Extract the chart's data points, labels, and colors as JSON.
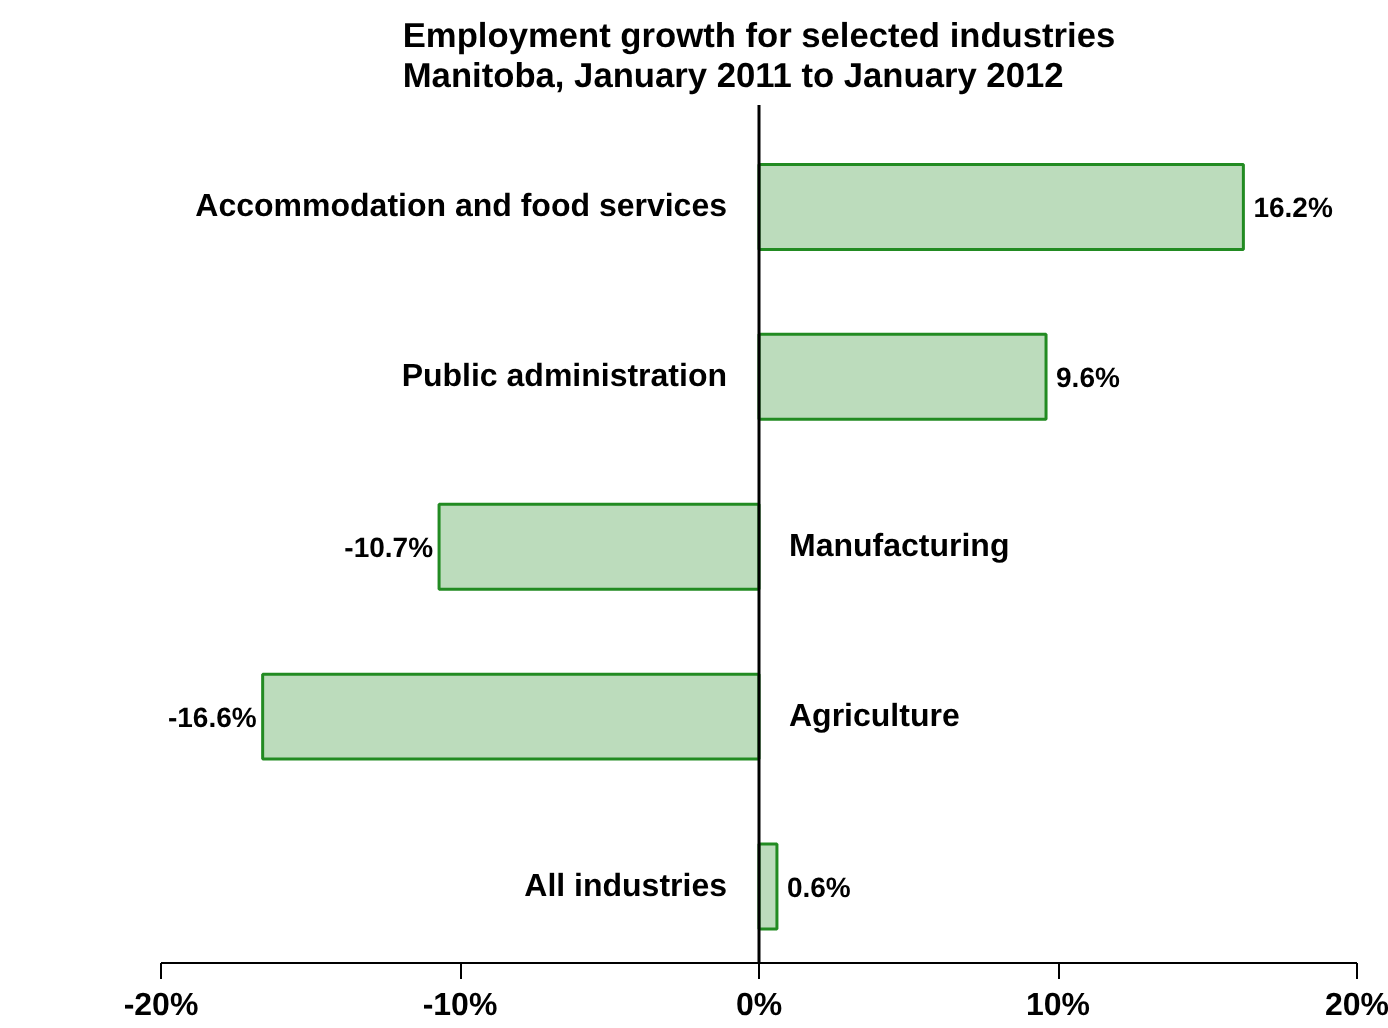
{
  "chart_data": {
    "type": "bar",
    "orientation": "horizontal",
    "title": "Employment growth for selected industries\nManitoba, January 2011 to January 2012",
    "categories": [
      "Accommodation and food services",
      "Public administration",
      "Manufacturing",
      "Agriculture",
      "All industries"
    ],
    "values": [
      16.2,
      9.6,
      -10.7,
      -16.6,
      0.6
    ],
    "value_labels": [
      "16.2%",
      "9.6%",
      "-10.7%",
      "-16.6%",
      "0.6%"
    ],
    "color": "#228b22",
    "xlim": [
      -20,
      20
    ],
    "xticks": [
      {
        "value": -20,
        "label": "-20%"
      },
      {
        "value": -10,
        "label": "-10%"
      },
      {
        "value": 0,
        "label": "0%"
      },
      {
        "value": 10,
        "label": "10%"
      },
      {
        "value": 20,
        "label": "20%"
      }
    ],
    "grid": false
  }
}
